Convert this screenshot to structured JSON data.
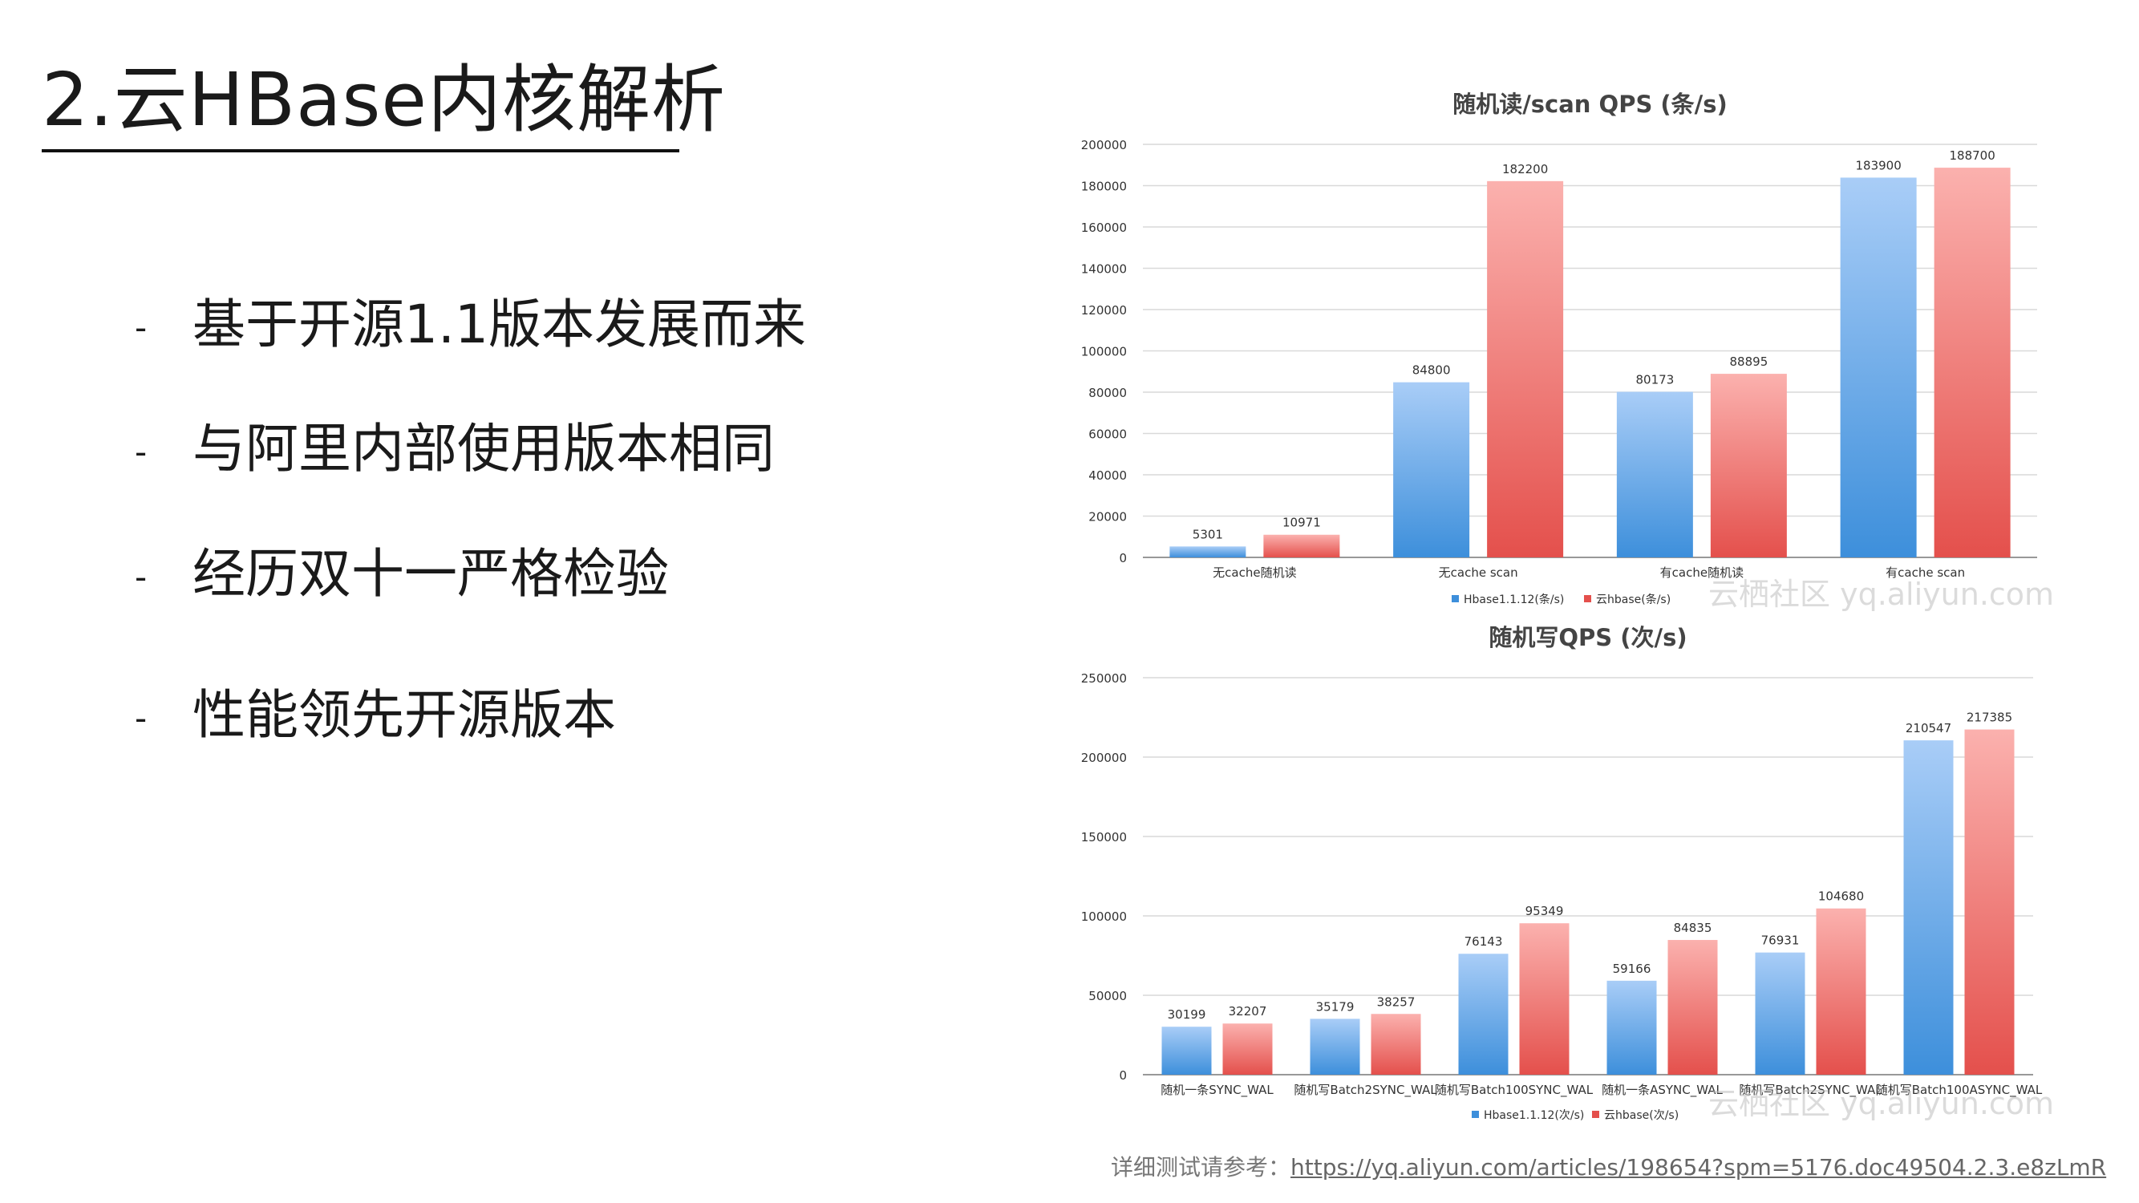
{
  "slide": {
    "title": "2.云HBase内核解析",
    "bullet_marker": "-",
    "bullets": [
      "基于开源1.1版本发展而来",
      "与阿里内部使用版本相同",
      "经历双十一严格检验",
      "性能领先开源版本"
    ],
    "watermark": "云栖社区 yq.aliyun.com",
    "reference_label": "详细测试请参考：",
    "reference_link": "https://yq.aliyun.com/articles/198654?spm=5176.doc49504.2.3.e8zLmR"
  },
  "colors": {
    "series_a_top": "#a9cdf7",
    "series_a_bottom": "#3d8fdb",
    "series_b_top": "#fbb1ae",
    "series_b_bottom": "#e4504c",
    "grid": "#d9d9d9",
    "axis": "#999999"
  },
  "chart_data": [
    {
      "type": "bar",
      "title": "随机读/scan QPS (条/s)",
      "categories": [
        "无cache随机读",
        "无cache scan",
        "有cache随机读",
        "有cache scan"
      ],
      "series": [
        {
          "name": "Hbase1.1.12(条/s)",
          "values": [
            5301,
            84800,
            80173,
            183900
          ]
        },
        {
          "name": "云hbase(条/s)",
          "values": [
            10971,
            182200,
            88895,
            188700
          ]
        }
      ],
      "ylim": [
        0,
        200000
      ],
      "yticks": [
        0,
        20000,
        40000,
        60000,
        80000,
        100000,
        120000,
        140000,
        160000,
        180000,
        200000
      ],
      "grid": true,
      "legend": "bottom"
    },
    {
      "type": "bar",
      "title": "随机写QPS (次/s)",
      "categories": [
        "随机一条SYNC_WAL",
        "随机写Batch2SYNC_WAL",
        "随机写Batch100SYNC_WAL",
        "随机一条ASYNC_WAL",
        "随机写Batch2SYNC_WAL",
        "随机写Batch100ASYNC_WAL"
      ],
      "series": [
        {
          "name": "Hbase1.1.12(次/s)",
          "values": [
            30199,
            35179,
            76143,
            59166,
            76931,
            210547
          ]
        },
        {
          "name": "云hbase(次/s)",
          "values": [
            32207,
            38257,
            95349,
            84835,
            104680,
            217385
          ]
        }
      ],
      "ylim": [
        0,
        250000
      ],
      "yticks": [
        0,
        50000,
        100000,
        150000,
        200000,
        250000
      ],
      "grid": true,
      "legend": "bottom"
    }
  ]
}
